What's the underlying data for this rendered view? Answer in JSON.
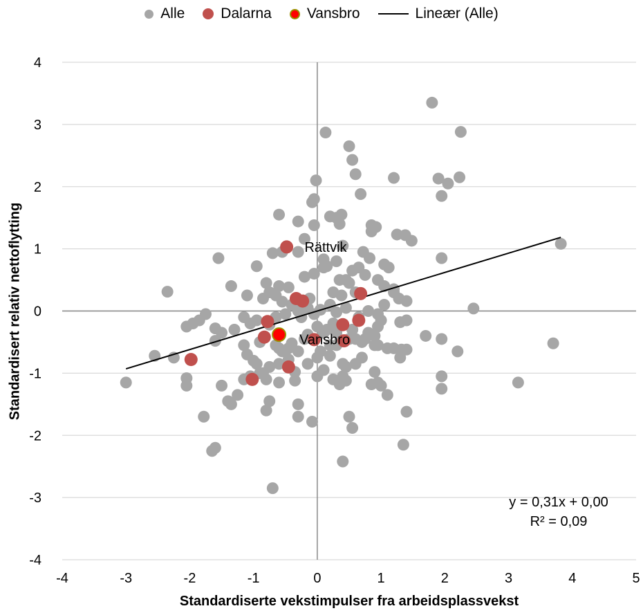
{
  "chart_data": {
    "type": "scatter",
    "title": "",
    "xlabel": "Standardiserte vekstimpulser fra arbeidsplassvekst",
    "ylabel": "Standardisert relativ nettoflytting",
    "xlim": [
      -4,
      5
    ],
    "ylim": [
      -4,
      4
    ],
    "x_ticks": [
      "-4",
      "-3",
      "-2",
      "-1",
      "0",
      "1",
      "2",
      "3",
      "4",
      "5"
    ],
    "y_ticks": [
      "4",
      "3",
      "2",
      "1",
      "0",
      "-1",
      "-2",
      "-3",
      "-4"
    ],
    "grid": "horizontal",
    "legend_position": "top",
    "legend": [
      "Alle",
      "Dalarna",
      "Vansbro",
      "Lineær (Alle)"
    ],
    "series": [
      {
        "name": "Alle",
        "color": "#a6a6a6",
        "x": [
          1.8,
          2.25,
          0.13,
          0.5,
          0.55,
          1.9,
          2.05,
          0.6,
          -0.02,
          1.95,
          2.23,
          1.2,
          0.68,
          -0.08,
          -0.6,
          0.2,
          0.3,
          0.85,
          -0.3,
          -0.05,
          0.85,
          0.92,
          1.25,
          1.38,
          1.48,
          -0.2,
          3.82,
          -0.55,
          -0.7,
          0.1,
          1.95,
          -1.55,
          -2.35,
          -1.35,
          -0.95,
          -1.1,
          -0.85,
          -0.2,
          -0.05,
          0.1,
          0.35,
          0.55,
          0.75,
          1.05,
          1.12,
          1.2,
          1.4,
          2.45,
          -1.75,
          -1.95,
          -2.05,
          -1.85,
          -1.6,
          -1.5,
          -1.3,
          -1.15,
          -1.05,
          -0.95,
          -0.75,
          -0.65,
          -0.5,
          -0.3,
          -0.25,
          -0.05,
          0.05,
          0.2,
          0.3,
          0.45,
          0.65,
          0.8,
          0.95,
          1.05,
          1.3,
          1.4,
          1.7,
          1.95,
          2.2,
          -2.55,
          -2.25,
          -1.6,
          -1.15,
          -0.9,
          -0.6,
          -0.4,
          -0.2,
          0.1,
          0.3,
          0.5,
          0.7,
          0.9,
          1.1,
          -2.05,
          -2.05,
          -1.5,
          -1.15,
          -1.05,
          -0.8,
          -0.6,
          -0.35,
          0.0,
          0.25,
          0.4,
          0.45,
          1.95,
          1.95,
          3.7,
          3.15,
          1.35,
          -1.65,
          -1.6,
          -1.78,
          -0.3,
          0.5,
          0.55,
          0.4,
          0.35,
          -0.7,
          -0.08,
          -0.75,
          -0.8,
          -0.9,
          -0.3,
          0.6,
          0.95,
          1.0,
          1.1,
          0.85,
          -3.0,
          1.4,
          1.32,
          0.9,
          0.95,
          1.4,
          0.55,
          0.3,
          0.15,
          -0.15,
          -0.45,
          -0.55,
          -1.0,
          -1.1,
          0.0,
          0.2,
          0.4,
          0.7,
          0.8,
          1.2,
          1.3,
          0.75,
          -0.15,
          -0.35,
          -0.45,
          -0.6,
          0.05,
          0.1,
          0.45,
          -0.25,
          0.0,
          0.25,
          0.55,
          0.9,
          -0.12,
          -0.55,
          -0.65,
          -0.4,
          -0.15,
          0.25,
          0.38,
          -1.4,
          -1.25,
          -1.35,
          -0.95,
          -0.85,
          -0.75,
          0.6,
          0.45,
          0.5,
          0.95,
          1.2,
          1.28,
          0.3,
          0.15,
          -0.3,
          0.4,
          0.72,
          0.82,
          1.05,
          0.65,
          0.35,
          0.38,
          -0.05,
          -0.6,
          -0.75,
          -0.8,
          -0.45,
          1.0,
          0.55,
          0.95,
          0.6,
          0.35,
          0.2,
          -0.3,
          -0.65
        ],
        "y": [
          3.35,
          2.88,
          2.87,
          2.65,
          2.43,
          2.13,
          2.05,
          2.2,
          2.1,
          1.85,
          2.15,
          2.14,
          1.88,
          1.75,
          1.55,
          1.52,
          1.5,
          1.38,
          1.44,
          1.38,
          1.28,
          1.35,
          1.23,
          1.22,
          1.13,
          1.16,
          1.08,
          0.95,
          0.93,
          0.83,
          0.85,
          0.85,
          0.31,
          0.4,
          0.72,
          0.25,
          0.2,
          0.55,
          0.6,
          0.7,
          0.5,
          0.65,
          0.58,
          0.4,
          0.7,
          0.35,
          0.16,
          0.04,
          -0.05,
          -0.2,
          -0.25,
          -0.15,
          -0.28,
          -0.35,
          -0.3,
          -0.1,
          -0.2,
          -0.15,
          -0.22,
          -0.1,
          -0.05,
          0.0,
          0.1,
          -0.05,
          0.02,
          0.1,
          -0.02,
          0.05,
          -0.1,
          0.0,
          -0.05,
          0.1,
          -0.18,
          -0.15,
          -0.4,
          -0.45,
          -0.65,
          -0.72,
          -0.75,
          -0.48,
          -0.55,
          -0.5,
          -0.6,
          -0.52,
          -0.45,
          -0.35,
          -0.55,
          -0.45,
          -0.5,
          -0.55,
          -0.6,
          -1.08,
          -1.2,
          -1.2,
          -1.1,
          -1.05,
          -1.1,
          -1.15,
          -1.12,
          -1.05,
          -1.1,
          -1.05,
          -1.12,
          -1.05,
          -1.25,
          -0.52,
          -1.15,
          -2.15,
          -2.25,
          -2.2,
          -1.7,
          -1.7,
          -1.7,
          -1.88,
          -2.42,
          -1.18,
          -2.85,
          -1.78,
          -1.45,
          -1.6,
          -1.0,
          -1.5,
          -0.85,
          -1.15,
          -1.2,
          -1.35,
          -1.18,
          -1.15,
          -1.62,
          -0.62,
          -0.98,
          -0.55,
          -0.62,
          -0.42,
          -0.35,
          -0.3,
          -0.38,
          -0.6,
          -0.65,
          -0.8,
          -0.7,
          -0.75,
          -0.72,
          -0.85,
          -0.75,
          -0.35,
          -0.6,
          -0.75,
          -0.45,
          -0.85,
          -0.98,
          -0.78,
          -0.85,
          -0.65,
          -0.95,
          -0.9,
          -0.1,
          -0.25,
          -0.2,
          -0.3,
          -0.4,
          0.2,
          0.15,
          0.25,
          0.1,
          0.05,
          0.3,
          0.25,
          -1.45,
          -1.35,
          -1.5,
          -0.85,
          -1.0,
          -0.9,
          0.3,
          0.5,
          0.45,
          0.5,
          0.3,
          0.2,
          0.8,
          0.72,
          0.95,
          1.05,
          0.95,
          0.85,
          0.75,
          0.7,
          1.4,
          1.55,
          1.8,
          0.4,
          0.3,
          0.45,
          0.38,
          -0.15,
          -0.3,
          -0.25,
          -0.45,
          -0.5,
          -0.55,
          -0.65,
          -0.55
        ],
        "text": {}
      },
      {
        "name": "Dalarna",
        "color": "#c0504d",
        "x": [
          -0.48,
          -0.33,
          -0.23,
          0.68,
          0.65,
          0.4,
          -0.78,
          -0.83,
          -0.45,
          -1.02,
          -1.98,
          0.42,
          -0.05
        ],
        "y": [
          1.03,
          0.2,
          0.16,
          0.28,
          -0.15,
          -0.22,
          -0.17,
          -0.42,
          -0.9,
          -1.1,
          -0.78,
          -0.48,
          -0.46
        ]
      },
      {
        "name": "Vansbro",
        "color": "#ff0000",
        "border": "#9c8f00",
        "x": [
          -0.6
        ],
        "y": [
          -0.38
        ]
      }
    ],
    "trendline": {
      "name": "Lineær (Alle)",
      "slope": 0.31,
      "intercept": 0.0,
      "x_range": [
        -3.0,
        3.82
      ],
      "color": "#000000"
    },
    "annotations": [
      "Rättvik",
      "Vansbro"
    ],
    "equation": [
      "y = 0,31x + 0,00",
      "R² = 0,09"
    ]
  },
  "legend": {
    "alle": "Alle",
    "dalarna": "Dalarna",
    "vansbro": "Vansbro",
    "lineaer": "Lineær (Alle)"
  },
  "labels": {
    "rattvik": "Rättvik",
    "vansbro": "Vansbro"
  },
  "equation": {
    "line1": "y = 0,31x + 0,00",
    "line2": "R² = 0,09"
  },
  "colors": {
    "grid": "#d9d9d9",
    "axis": "#808080",
    "alle": "#a6a6a6",
    "dalarna": "#c0504d",
    "vansbro": "#ff0000"
  }
}
